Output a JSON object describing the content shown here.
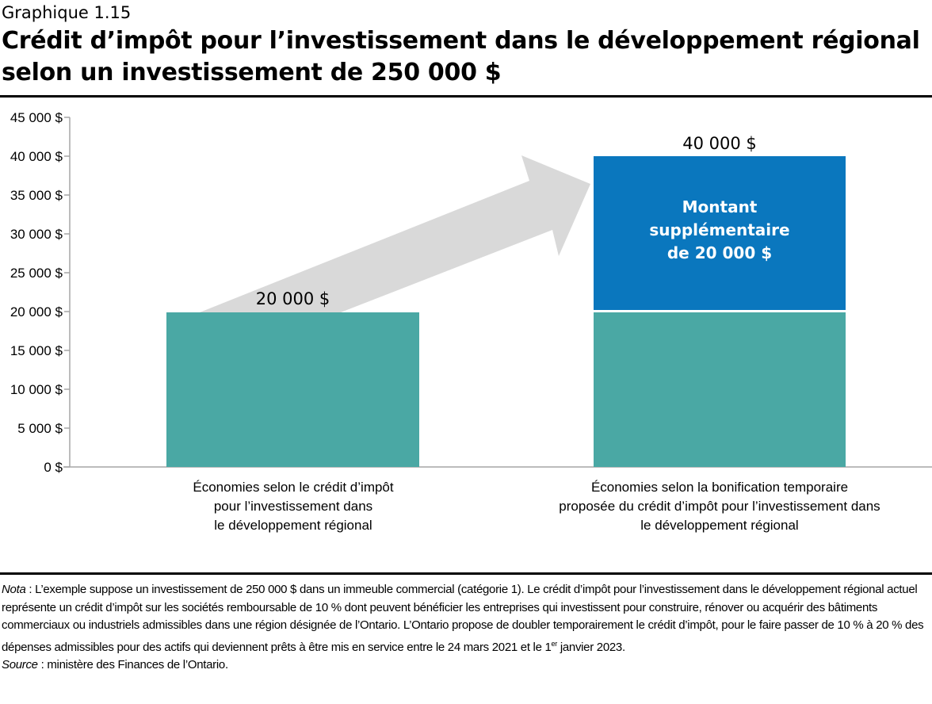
{
  "header": {
    "eyebrow": "Graphique 1.15",
    "title": "Crédit d’impôt pour l’investissement dans le développement régional selon un investissement de 250 000 $"
  },
  "chart_data": {
    "type": "bar",
    "stacked": true,
    "title": "Crédit d’impôt pour l’investissement dans le développement régional selon un investissement de 250 000 $",
    "categories": [
      "Économies selon le crédit d’impôt pour l’investissement dans le développement régional",
      "Économies selon la bonification temporaire proposée du crédit d’impôt pour l’investissement dans le développement régional"
    ],
    "category_lines": [
      [
        "Économies selon le crédit d’impôt",
        "pour l’investissement dans",
        "le développement régional"
      ],
      [
        "Économies selon la bonification temporaire",
        "proposée du crédit d’impôt pour l’investissement dans",
        "le développement régional"
      ]
    ],
    "series": [
      {
        "values": [
          20000,
          20000
        ],
        "color": "#4AA8A4"
      },
      {
        "name": "Montant supplémentaire de 20 000 $",
        "values": [
          0,
          20000
        ],
        "color": "#0A77BE"
      }
    ],
    "series_label_lines": [
      "Montant",
      "supplémentaire",
      "de 20 000 $"
    ],
    "data_labels": [
      "20 000 $",
      "40 000 $"
    ],
    "yticks": [
      "0 $",
      "5 000 $",
      "10 000 $",
      "15 000 $",
      "20 000 $",
      "25 000 $",
      "30 000 $",
      "35 000 $",
      "40 000 $",
      "45 000 $"
    ],
    "ylim": [
      0,
      45000
    ],
    "grid": false,
    "annotation": "grey arrow from first bar to second bar",
    "arrow_color": "#D9D9D9",
    "axis_color": "#A6A6A6"
  },
  "notes": {
    "nota_label": "Nota",
    "nota_text": " : L’exemple suppose un investissement de 250 000 $ dans un immeuble commercial (catégorie 1). Le crédit d’impôt pour l’investissement dans le développement régional actuel représente un crédit d’impôt sur les sociétés remboursable de 10 % dont peuvent bénéficier les entreprises qui investissent pour construire, rénover ou acquérir des bâtiments commerciaux ou industriels admissibles dans une région désignée de l’Ontario. L’Ontario propose de doubler temporairement le crédit d’impôt, pour le faire passer de 10 % à 20 % des dépenses admissibles pour des actifs qui deviennent prêts à être mis en service entre le 24 mars 2021 et le 1",
    "nota_sup": "er",
    "nota_end": " janvier 2023.",
    "source_label": "Source",
    "source_text": " : ministère des Finances de l’Ontario."
  }
}
